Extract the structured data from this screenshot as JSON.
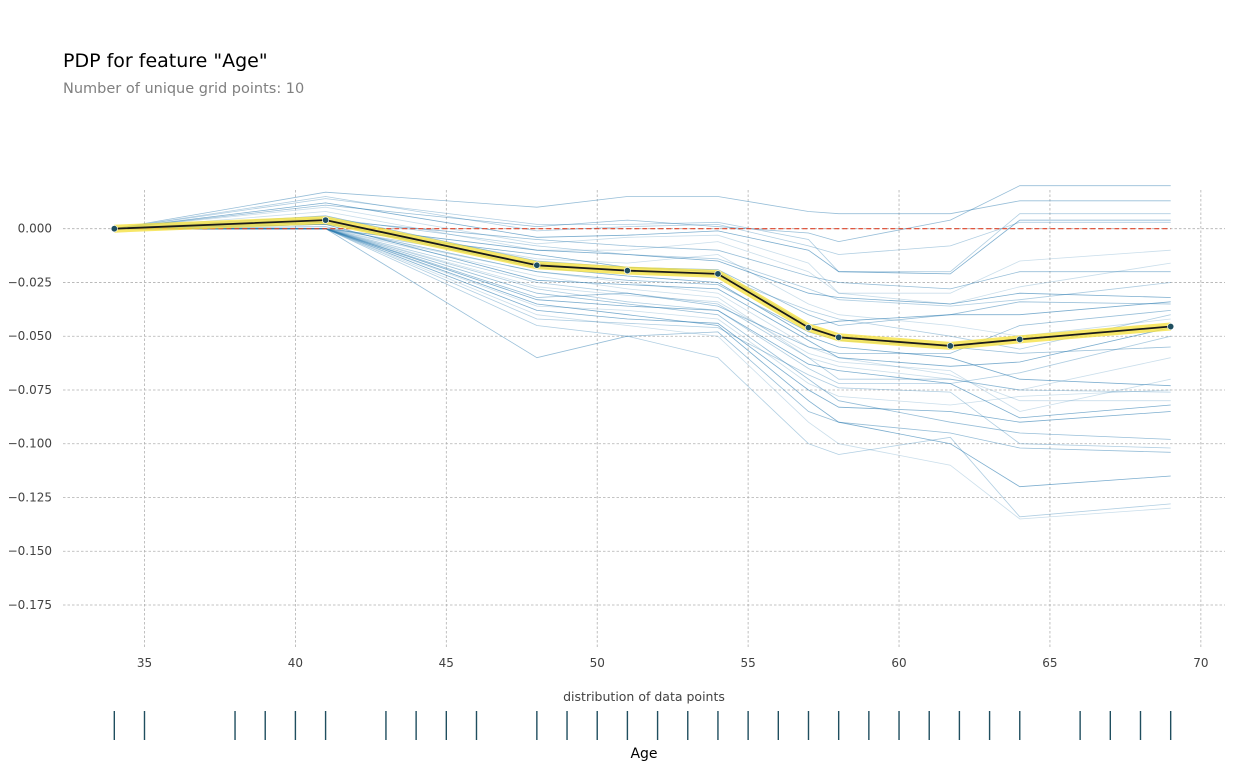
{
  "chart_data": {
    "type": "line",
    "title": "PDP for feature \"Age\"",
    "subtitle": "Number of unique grid points: 10",
    "xlabel": "Age",
    "ylabel": "",
    "distribution_label": "distribution of data points",
    "xlim": [
      32.3,
      70.8
    ],
    "ylim": [
      -0.195,
      0.018
    ],
    "xticks": [
      35,
      40,
      45,
      50,
      55,
      60,
      65,
      70
    ],
    "xtick_labels": [
      "35",
      "40",
      "45",
      "50",
      "55",
      "60",
      "65",
      "70"
    ],
    "yticks": [
      0,
      -0.025,
      -0.05,
      -0.075,
      -0.1,
      -0.125,
      -0.15,
      -0.175
    ],
    "ytick_labels": [
      "0.000",
      "−0.025",
      "−0.050",
      "−0.075",
      "−0.100",
      "−0.125",
      "−0.150",
      "−0.175"
    ],
    "grid": true,
    "pdp": {
      "x": [
        34,
        41,
        48,
        51,
        54,
        57,
        58,
        61.7,
        64,
        69
      ],
      "y": [
        0,
        0.004,
        -0.017,
        -0.0195,
        -0.021,
        -0.046,
        -0.0505,
        -0.0545,
        -0.0515,
        -0.0455
      ]
    },
    "ice_lines": [
      [
        0,
        0.01,
        -0.007,
        -0.004,
        -0.003,
        -0.016,
        -0.03,
        -0.035,
        -0.027,
        -0.016
      ],
      [
        0,
        0.014,
        0.002,
        0.002,
        0.003,
        -0.005,
        -0.02,
        -0.02,
        0.007,
        0.007
      ],
      [
        0,
        0.017,
        0.01,
        0.015,
        0.015,
        0.008,
        0.007,
        0.007,
        0.013,
        0.013
      ],
      [
        0,
        0.012,
        -0.004,
        -0.003,
        -0.001,
        -0.01,
        -0.02,
        -0.021,
        0.004,
        0.004
      ],
      [
        0,
        0.008,
        -0.01,
        -0.01,
        -0.006,
        -0.02,
        -0.03,
        -0.03,
        -0.015,
        -0.01
      ],
      [
        0,
        0.015,
        -0.001,
        0.001,
        0.002,
        -0.008,
        -0.012,
        -0.008,
        0.003,
        0.003
      ],
      [
        0,
        0.006,
        -0.015,
        -0.018,
        -0.019,
        -0.04,
        -0.045,
        -0.04,
        -0.034,
        -0.035
      ],
      [
        0,
        0.003,
        -0.018,
        -0.022,
        -0.025,
        -0.05,
        -0.055,
        -0.06,
        -0.07,
        -0.073
      ],
      [
        0,
        0.0,
        -0.02,
        -0.025,
        -0.03,
        -0.055,
        -0.06,
        -0.068,
        -0.08,
        -0.08
      ],
      [
        0,
        0.0,
        -0.025,
        -0.03,
        -0.035,
        -0.06,
        -0.07,
        -0.07,
        -0.075,
        -0.076
      ],
      [
        0,
        0.0,
        -0.03,
        -0.035,
        -0.04,
        -0.07,
        -0.08,
        -0.09,
        -0.095,
        -0.098
      ],
      [
        0,
        0.0,
        -0.035,
        -0.04,
        -0.045,
        -0.08,
        -0.09,
        -0.1,
        -0.12,
        -0.115
      ],
      [
        0,
        0.0,
        -0.04,
        -0.045,
        -0.05,
        -0.09,
        -0.1,
        -0.11,
        -0.135,
        -0.13
      ],
      [
        0,
        0.0,
        -0.045,
        -0.05,
        -0.06,
        -0.1,
        -0.105,
        -0.097,
        -0.134,
        -0.128
      ],
      [
        0,
        0.0,
        -0.06,
        -0.05,
        -0.048,
        -0.085,
        -0.09,
        -0.095,
        -0.102,
        -0.104
      ],
      [
        0,
        0.0,
        -0.038,
        -0.042,
        -0.044,
        -0.075,
        -0.083,
        -0.085,
        -0.09,
        -0.085
      ],
      [
        0,
        0.0,
        -0.022,
        -0.028,
        -0.032,
        -0.06,
        -0.064,
        -0.07,
        -0.075,
        -0.06
      ],
      [
        0,
        0.0,
        -0.028,
        -0.034,
        -0.038,
        -0.065,
        -0.072,
        -0.072,
        -0.067,
        -0.05
      ],
      [
        0,
        0.0,
        -0.032,
        -0.03,
        -0.036,
        -0.055,
        -0.058,
        -0.058,
        -0.045,
        -0.038
      ],
      [
        0,
        0.0,
        -0.012,
        -0.018,
        -0.02,
        -0.045,
        -0.043,
        -0.04,
        -0.04,
        -0.034
      ],
      [
        0,
        0.003,
        -0.014,
        -0.016,
        -0.012,
        -0.035,
        -0.04,
        -0.045,
        -0.05,
        -0.042
      ],
      [
        0,
        0.005,
        -0.008,
        -0.012,
        -0.014,
        -0.028,
        -0.033,
        -0.036,
        -0.033,
        -0.025
      ],
      [
        0,
        0.001,
        -0.02,
        -0.024,
        -0.026,
        -0.048,
        -0.052,
        -0.055,
        -0.058,
        -0.055
      ],
      [
        0,
        0.002,
        -0.024,
        -0.026,
        -0.028,
        -0.052,
        -0.06,
        -0.064,
        -0.062,
        -0.046
      ],
      [
        0,
        0.0,
        -0.027,
        -0.031,
        -0.034,
        -0.058,
        -0.062,
        -0.066,
        -0.085,
        -0.07
      ],
      [
        0,
        0.0,
        -0.016,
        -0.02,
        -0.022,
        -0.038,
        -0.042,
        -0.05,
        -0.056,
        -0.04
      ],
      [
        0,
        0.004,
        -0.005,
        -0.008,
        -0.01,
        -0.022,
        -0.025,
        -0.028,
        -0.02,
        -0.02
      ],
      [
        0,
        0.002,
        -0.01,
        -0.012,
        -0.015,
        -0.03,
        -0.032,
        -0.035,
        -0.03,
        -0.032
      ],
      [
        0,
        0.0,
        -0.036,
        -0.038,
        -0.042,
        -0.072,
        -0.078,
        -0.082,
        -0.078,
        -0.075
      ],
      [
        0,
        0.0,
        -0.042,
        -0.044,
        -0.046,
        -0.068,
        -0.074,
        -0.076,
        -0.1,
        -0.102
      ],
      [
        0,
        0.011,
        0.001,
        0.004,
        0.001,
        -0.002,
        -0.006,
        0.004,
        0.02,
        0.02
      ],
      [
        0,
        0.0,
        -0.033,
        -0.036,
        -0.038,
        -0.063,
        -0.066,
        -0.072,
        -0.088,
        -0.082
      ]
    ],
    "distribution_ages": [
      34,
      35,
      38,
      39,
      40,
      41,
      43,
      44,
      45,
      46,
      48,
      49,
      50,
      51,
      52,
      53,
      54,
      55,
      56,
      57,
      58,
      59,
      60,
      61,
      62,
      63,
      64,
      66,
      67,
      68,
      69
    ],
    "colors": {
      "pdp_line": "#1a1a1a",
      "pdp_band": "#f5e142",
      "pdp_marker": "#1f4e5f",
      "ice_line": "#2a7bb0",
      "baseline": "#e0442a",
      "grid": "#b0b0b0",
      "dist_tick": "#1f4e5f"
    }
  }
}
